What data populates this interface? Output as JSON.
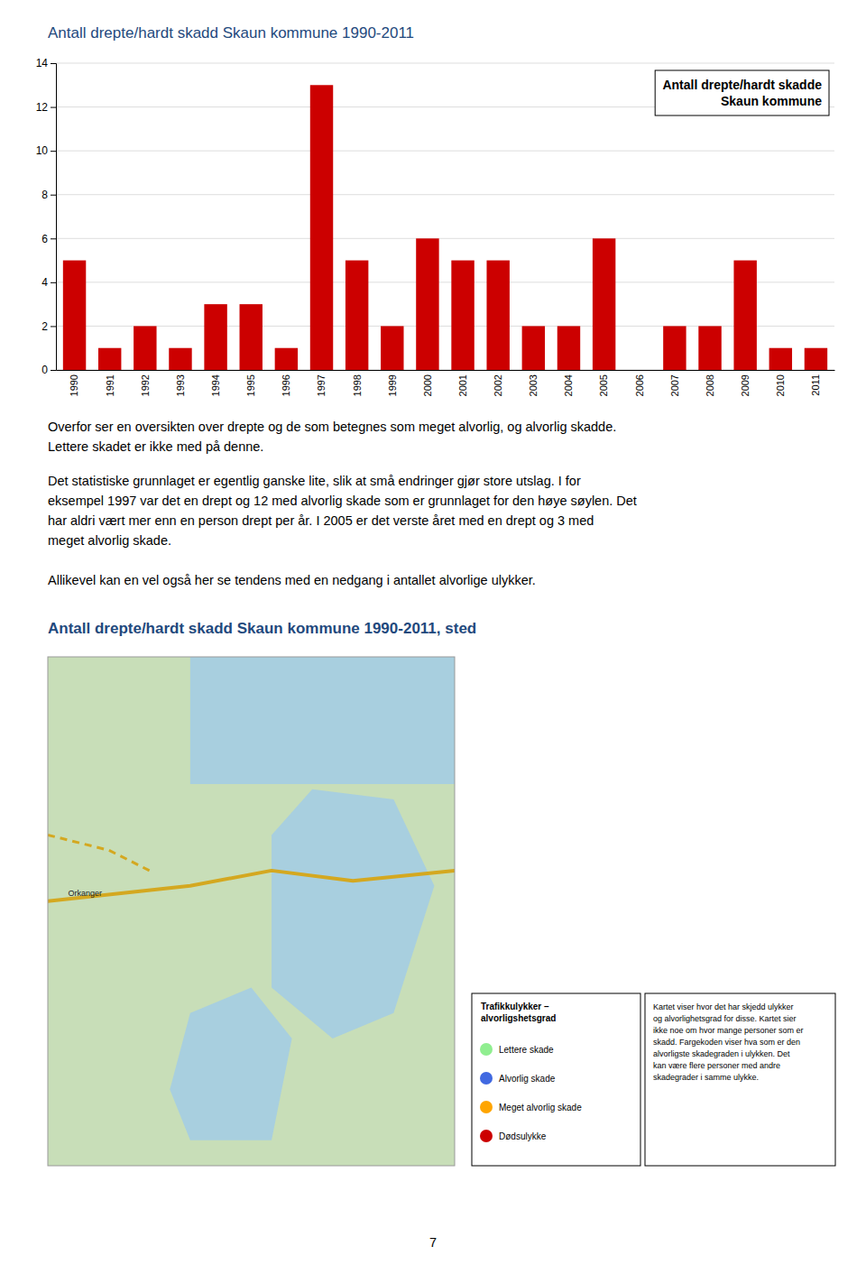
{
  "chart_data": {
    "type": "bar",
    "title": "Antall drepte/hardt skadd Skaun kommune 1990-2011",
    "categories": [
      1990,
      1991,
      1992,
      1993,
      1994,
      1995,
      1996,
      1997,
      1998,
      1999,
      2000,
      2001,
      2002,
      2003,
      2004,
      2005,
      2006,
      2007,
      2008,
      2009,
      2010,
      2011
    ],
    "series": [
      {
        "name": "Antall drepte/hardt skadde\nSkaun kommune",
        "color": "#CC0000",
        "values": [
          5,
          1,
          2,
          1,
          3,
          3,
          1,
          13,
          5,
          2,
          6,
          5,
          5,
          2,
          2,
          6,
          0,
          2,
          2,
          5,
          1,
          1
        ]
      }
    ],
    "ylim": [
      0,
      14
    ],
    "yticks": [
      0,
      2,
      4,
      6,
      8,
      10,
      12,
      14
    ],
    "grid": true,
    "legend": "upper right"
  },
  "paragraphs": [
    [
      "Overfor ser en oversikten over drepte og de som betegnes som meget alvorlig, og alvorlig skadde.",
      "Lettere skadet er ikke med på denne."
    ],
    [
      "Det statistiske grunnlaget er egentlig ganske lite, slik at små endringer gjør store utslag. I for",
      "eksempel 1997 var det en drept og 12 med alvorlig skade som er grunnlaget for den høye søylen. Det",
      "har aldri vært mer enn en person drept per år. I 2005 er det verste året med en drept og 3 med",
      "meget alvorlig skade."
    ],
    [
      "Allikevel kan en vel også her se tendens med en nedgang i antallet alvorlige ulykker."
    ]
  ],
  "section_title": "Antall drepte/hardt skadd Skaun kommune 1990-2011, sted",
  "map": {
    "labels": [
      "Orkanger"
    ],
    "legend_title": "Trafikkulykker –\nalvorligshetsgrad",
    "legend_items": [
      {
        "label": "Lettere skade",
        "color": "#90EE90"
      },
      {
        "label": "Alvorlig skade",
        "color": "#4169E1"
      },
      {
        "label": "Meget alvorlig skade",
        "color": "#FFA500"
      },
      {
        "label": "Dødsulykke",
        "color": "#CC0000"
      }
    ],
    "description": "Kartet viser hvor det har skjedd ulykker\nog alvorlighetsgrad for disse. Kartet sier\nikke noe om hvor mange personer som er\nskadd. Fargekoden viser hva som er den\nalvorligste skadegraden i ulykken. Det\nkan være flere personer med andre\nskadegrader i samme ulykke."
  },
  "page_number": "7"
}
